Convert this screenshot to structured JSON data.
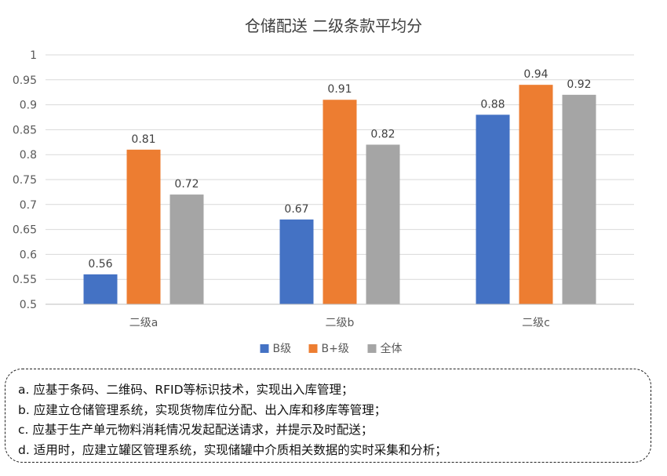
{
  "chart_data": {
    "type": "bar",
    "title": "仓储配送 二级条款平均分",
    "categories": [
      "二级a",
      "二级b",
      "二级c"
    ],
    "series": [
      {
        "name": "B级",
        "values": [
          0.56,
          0.67,
          0.88
        ],
        "color": "#4472C4"
      },
      {
        "name": "B+级",
        "values": [
          0.81,
          0.91,
          0.94
        ],
        "color": "#ED7D31"
      },
      {
        "name": "全体",
        "values": [
          0.72,
          0.82,
          0.92
        ],
        "color": "#A5A5A5"
      }
    ],
    "ylim": [
      0.5,
      1
    ],
    "yticks": [
      "0.5",
      "0.55",
      "0.6",
      "0.65",
      "0.7",
      "0.75",
      "0.8",
      "0.85",
      "0.9",
      "0.95",
      "1"
    ],
    "grid": true,
    "legend": "bottom"
  },
  "notes": [
    "a. 应基于条码、二维码、RFID等标识技术，实现出入库管理；",
    "b. 应建立仓储管理系统，实现货物库位分配、出入库和移库等管理；",
    "c. 应基于生产单元物料消耗情况发起配送请求，并提示及时配送；",
    "d. 适用时，应建立罐区管理系统，实现储罐中介质相关数据的实时采集和分析；"
  ]
}
